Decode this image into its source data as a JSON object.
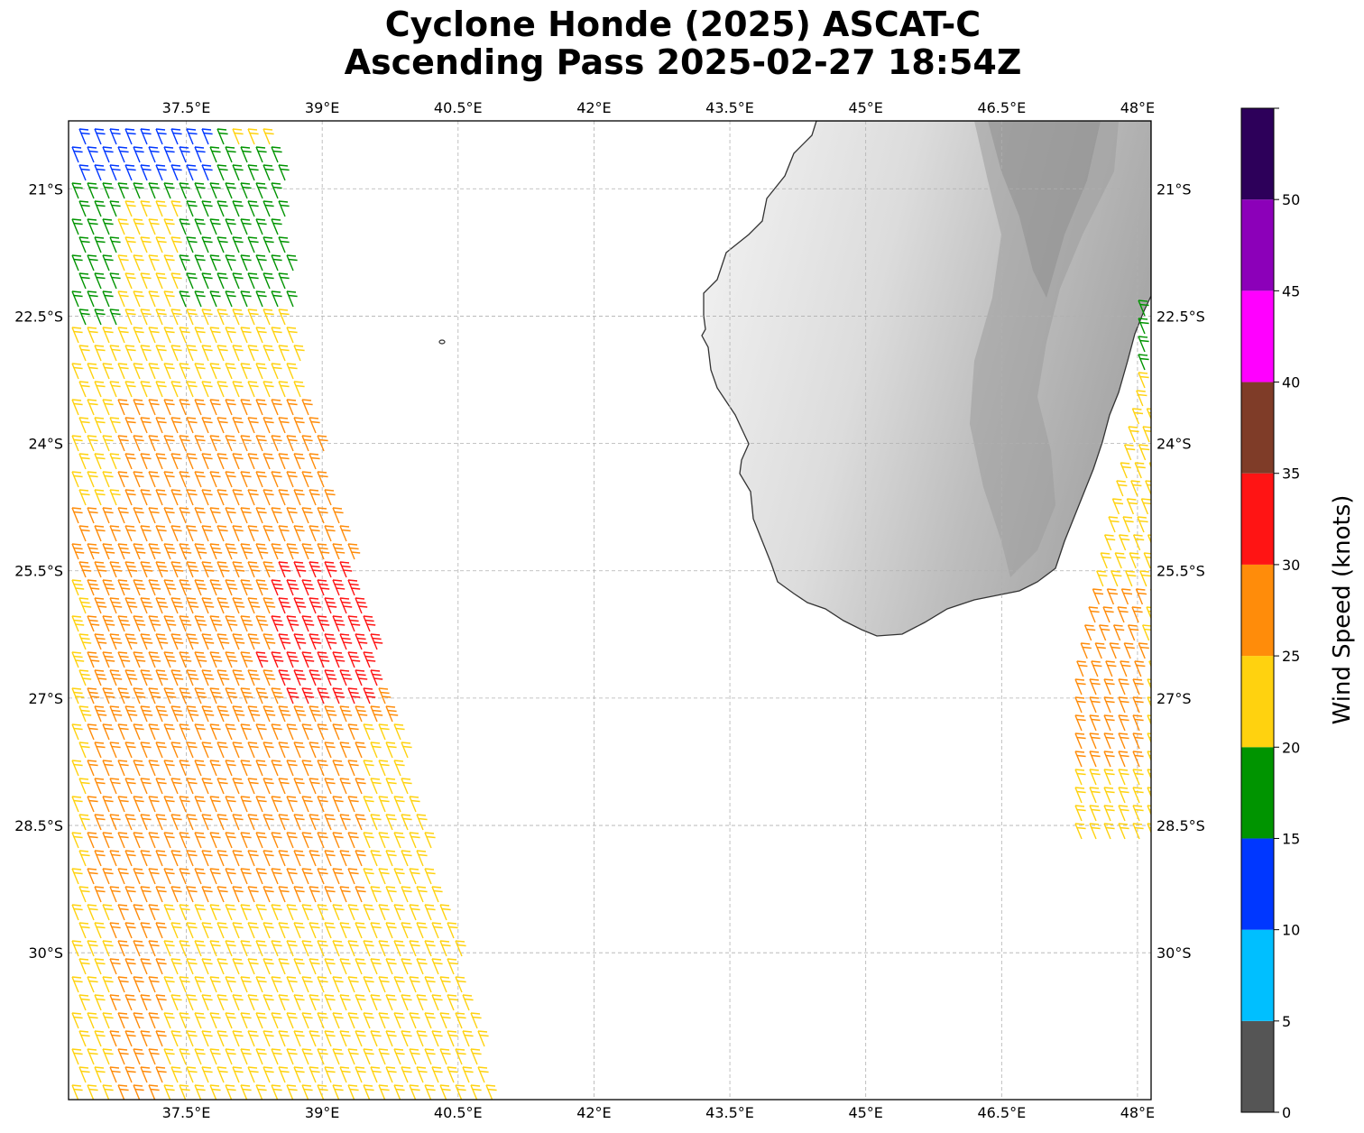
{
  "title": {
    "line1": "Cyclone Honde (2025) ASCAT-C",
    "line2": "Ascending Pass 2025-02-27 18:54Z"
  },
  "map": {
    "lon_range": [
      36.2,
      48.15
    ],
    "lat_range": [
      -31.73,
      -20.2
    ],
    "lon_ticks": [
      37.5,
      39,
      40.5,
      42,
      43.5,
      45,
      46.5,
      48
    ],
    "lon_tick_labels": [
      "37.5°E",
      "39°E",
      "40.5°E",
      "42°E",
      "43.5°E",
      "45°E",
      "46.5°E",
      "48°E"
    ],
    "lat_ticks": [
      -21,
      -22.5,
      -24,
      -25.5,
      -27,
      -28.5,
      -30
    ],
    "lat_tick_labels": [
      "21°S",
      "22.5°S",
      "24°S",
      "25.5°S",
      "27°S",
      "28.5°S",
      "30°S"
    ],
    "grid": true,
    "land_feature": "Madagascar (southern part) with grayscale terrain shading"
  },
  "colorbar": {
    "label": "Wind Speed (knots)",
    "range": [
      0,
      55
    ],
    "ticks": [
      "0",
      "5",
      "10",
      "15",
      "20",
      "25",
      "30",
      "35",
      "40",
      "45",
      "50"
    ],
    "colors": [
      "#555555",
      "#00bfff",
      "#0037ff",
      "#009400",
      "#ffd20f",
      "#ff8c0a",
      "#ff1414",
      "#7f3c28",
      "#ff00ff",
      "#8c00b9",
      "#2d005a"
    ]
  },
  "wind_swaths": {
    "west_swath_colors_by_region": [
      "#0037ff",
      "#009400",
      "#ffd20f",
      "#ff8c0a",
      "#ff1414"
    ],
    "east_swath_colors_by_region": [
      "#0037ff",
      "#009400",
      "#ffd20f",
      "#ff8c0a"
    ]
  }
}
